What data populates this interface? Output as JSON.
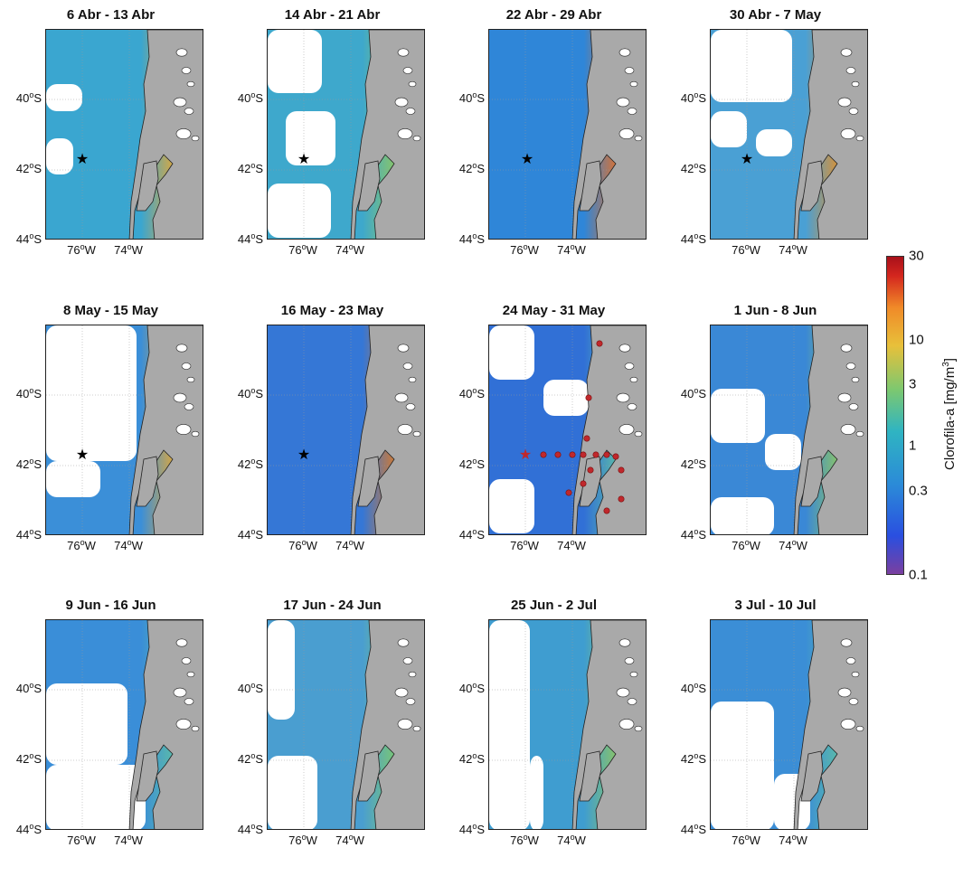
{
  "panels": [
    {
      "title": "6 Abr - 13 Abr"
    },
    {
      "title": "14 Abr - 21 Abr"
    },
    {
      "title": "22 Abr - 29 Abr"
    },
    {
      "title": "30 Abr - 7 May"
    },
    {
      "title": "8 May - 15 May"
    },
    {
      "title": "16 May - 23 May"
    },
    {
      "title": "24 May - 31 May"
    },
    {
      "title": "1 Jun - 8 Jun"
    },
    {
      "title": "9 Jun - 16 Jun"
    },
    {
      "title": "17 Jun - 24 Jun"
    },
    {
      "title": "25 Jun - 2 Jul"
    },
    {
      "title": "3 Jul - 10 Jul"
    }
  ],
  "axes": {
    "lat_ticks": [
      "40",
      "42",
      "44"
    ],
    "lat_hemisphere": "S",
    "lon_ticks": [
      "76",
      "74"
    ],
    "lon_hemisphere": "W",
    "degree_symbol": "o"
  },
  "colorbar": {
    "ticks": [
      "30",
      "10",
      "3",
      "1",
      "0.3",
      "0.1"
    ],
    "label_main": "Clorofila-a [mg/m",
    "label_sup": "3",
    "label_end": "]"
  },
  "colors": {
    "land": "#a9a9a9",
    "cloud_mask": "#ffffff",
    "low_chl": "#2f6fd8",
    "mid_chl": "#36b0c0",
    "high_chl": "#e8a236",
    "very_high_chl": "#c81e1e",
    "station_marker": "#c0282c"
  }
}
